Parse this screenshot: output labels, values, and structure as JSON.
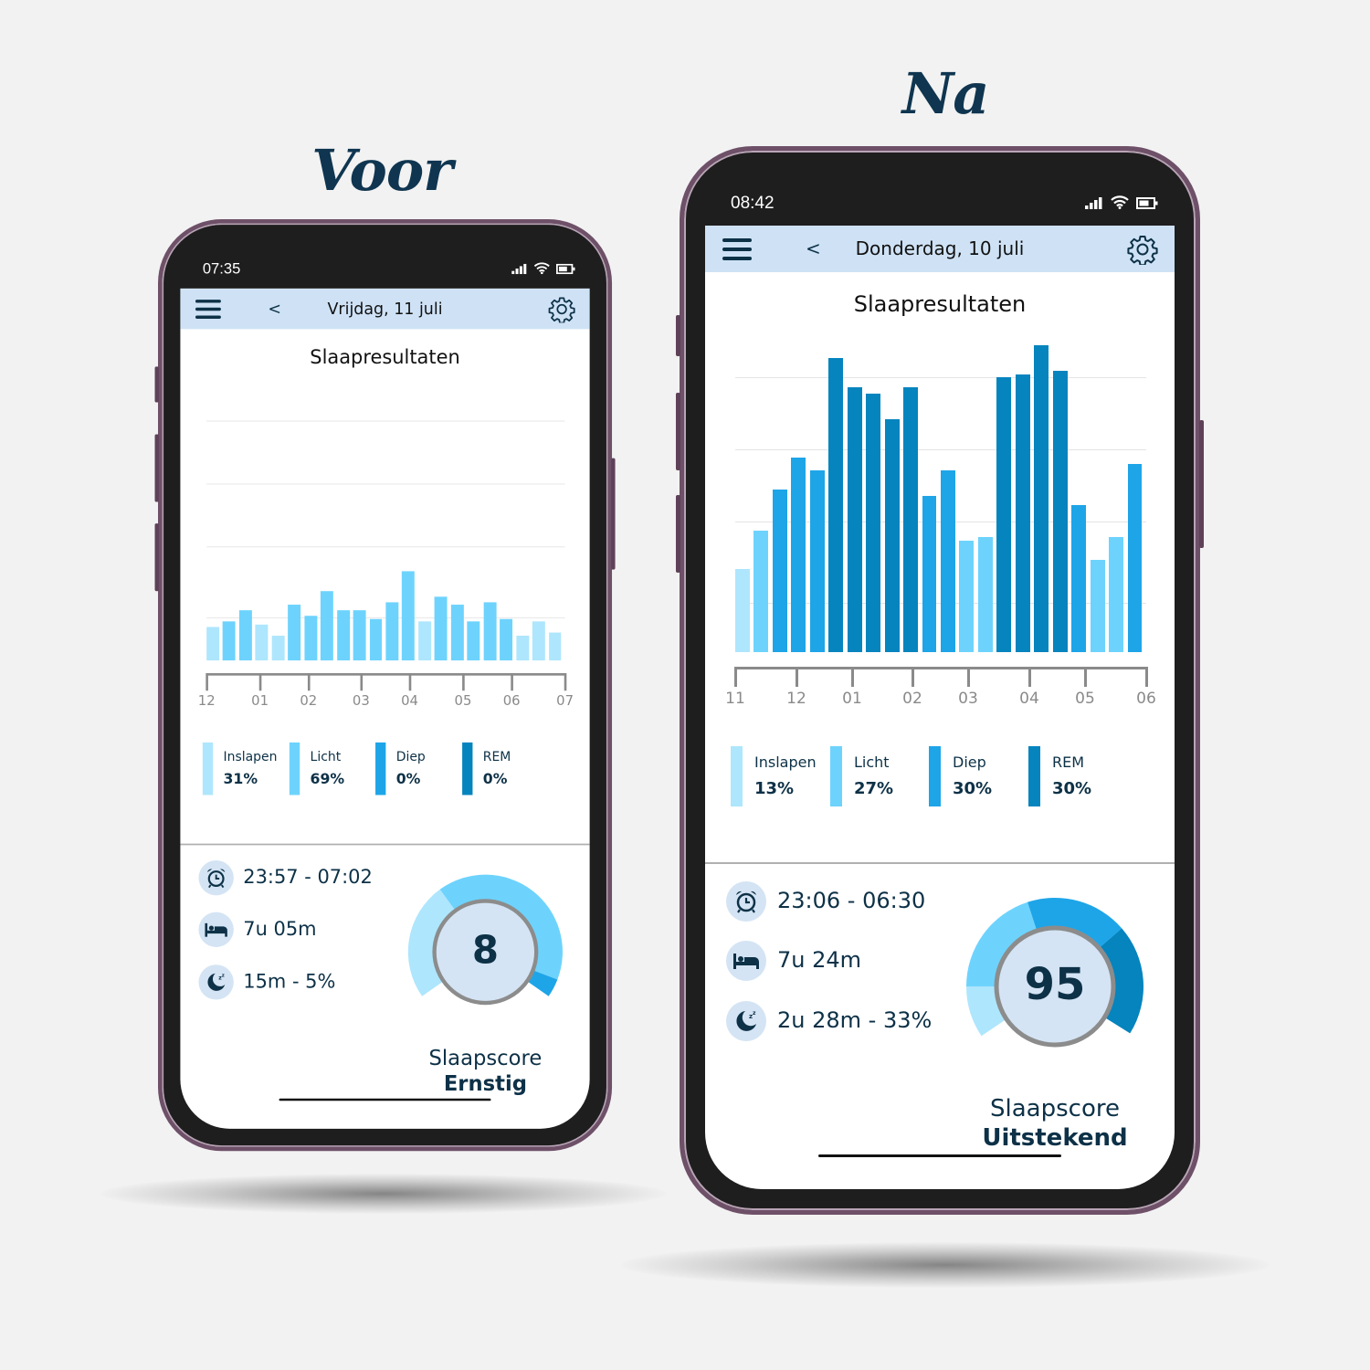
{
  "captions": {
    "before": "Voor",
    "after": "Na"
  },
  "colors": {
    "inslapen": "#aee6fd",
    "licht": "#6dd3fd",
    "diep": "#1ea5e8",
    "rem": "#0584be",
    "header_bg": "#cfe2f5",
    "text": "#0d3147"
  },
  "phones": [
    {
      "status": {
        "time": "07:35",
        "icons": [
          "signal-icon",
          "wifi-icon",
          "battery-icon"
        ]
      },
      "header": {
        "menu_icon": "hamburger-menu-icon",
        "back_icon": "chevron-left-icon",
        "back": "<",
        "date": "Vrijdag, 11 juli",
        "settings_icon": "gear-icon"
      },
      "stats": [
        {
          "icon": "alarm-clock-icon",
          "text": "23:57 - 07:02"
        },
        {
          "icon": "bed-icon",
          "text": "7u 05m"
        },
        {
          "icon": "moon-sleep-icon",
          "text": "15m - 5%"
        }
      ],
      "score": {
        "value": "8",
        "label": "Slaapscore",
        "rating": "Ernstig"
      }
    },
    {
      "status": {
        "time": "08:42",
        "icons": [
          "signal-icon",
          "wifi-icon",
          "battery-icon"
        ]
      },
      "header": {
        "menu_icon": "hamburger-menu-icon",
        "back_icon": "chevron-left-icon",
        "back": "<",
        "date": "Donderdag, 10 juli",
        "settings_icon": "gear-icon"
      },
      "stats": [
        {
          "icon": "alarm-clock-icon",
          "text": "23:06 - 06:30"
        },
        {
          "icon": "bed-icon",
          "text": "7u 24m"
        },
        {
          "icon": "moon-sleep-icon",
          "text": "2u 28m - 33%"
        }
      ],
      "score": {
        "value": "95",
        "label": "Slaapscore",
        "rating": "Uitstekend"
      }
    }
  ],
  "chart_data": [
    {
      "type": "bar",
      "title": "Slaapresultaten",
      "x_tick_labels": [
        "12",
        "01",
        "02",
        "03",
        "04",
        "05",
        "06",
        "07"
      ],
      "ylim": [
        0,
        100
      ],
      "grid": true,
      "values": [
        12,
        14,
        18,
        13,
        9,
        20,
        16,
        25,
        18,
        18,
        15,
        21,
        32,
        14,
        23,
        20,
        14,
        21,
        15,
        9,
        14,
        10
      ],
      "stages": [
        "inslapen",
        "licht",
        "licht",
        "inslapen",
        "inslapen",
        "licht",
        "licht",
        "licht",
        "licht",
        "licht",
        "licht",
        "licht",
        "licht",
        "inslapen",
        "licht",
        "licht",
        "licht",
        "licht",
        "licht",
        "inslapen",
        "inslapen",
        "inslapen"
      ],
      "legend": [
        {
          "stage": "inslapen",
          "label": "Inslapen",
          "percent": "31%"
        },
        {
          "stage": "licht",
          "label": "Licht",
          "percent": "69%"
        },
        {
          "stage": "diep",
          "label": "Diep",
          "percent": "0%"
        },
        {
          "stage": "rem",
          "label": "REM",
          "percent": "0%"
        }
      ]
    },
    {
      "type": "bar",
      "title": "Slaapresultaten",
      "x_tick_labels": [
        "11",
        "12",
        "01",
        "02",
        "03",
        "04",
        "05",
        "06"
      ],
      "ylim": [
        0,
        100
      ],
      "grid": true,
      "values": [
        26,
        38,
        51,
        61,
        57,
        92,
        83,
        81,
        73,
        83,
        49,
        57,
        35,
        36,
        86,
        87,
        96,
        88,
        46,
        29,
        36,
        59
      ],
      "stages": [
        "inslapen",
        "licht",
        "diep",
        "diep",
        "diep",
        "rem",
        "rem",
        "rem",
        "rem",
        "rem",
        "diep",
        "diep",
        "licht",
        "licht",
        "rem",
        "rem",
        "rem",
        "rem",
        "diep",
        "licht",
        "licht",
        "diep"
      ],
      "legend": [
        {
          "stage": "inslapen",
          "label": "Inslapen",
          "percent": "13%"
        },
        {
          "stage": "licht",
          "label": "Licht",
          "percent": "27%"
        },
        {
          "stage": "diep",
          "label": "Diep",
          "percent": "30%"
        },
        {
          "stage": "rem",
          "label": "REM",
          "percent": "30%"
        }
      ]
    }
  ]
}
